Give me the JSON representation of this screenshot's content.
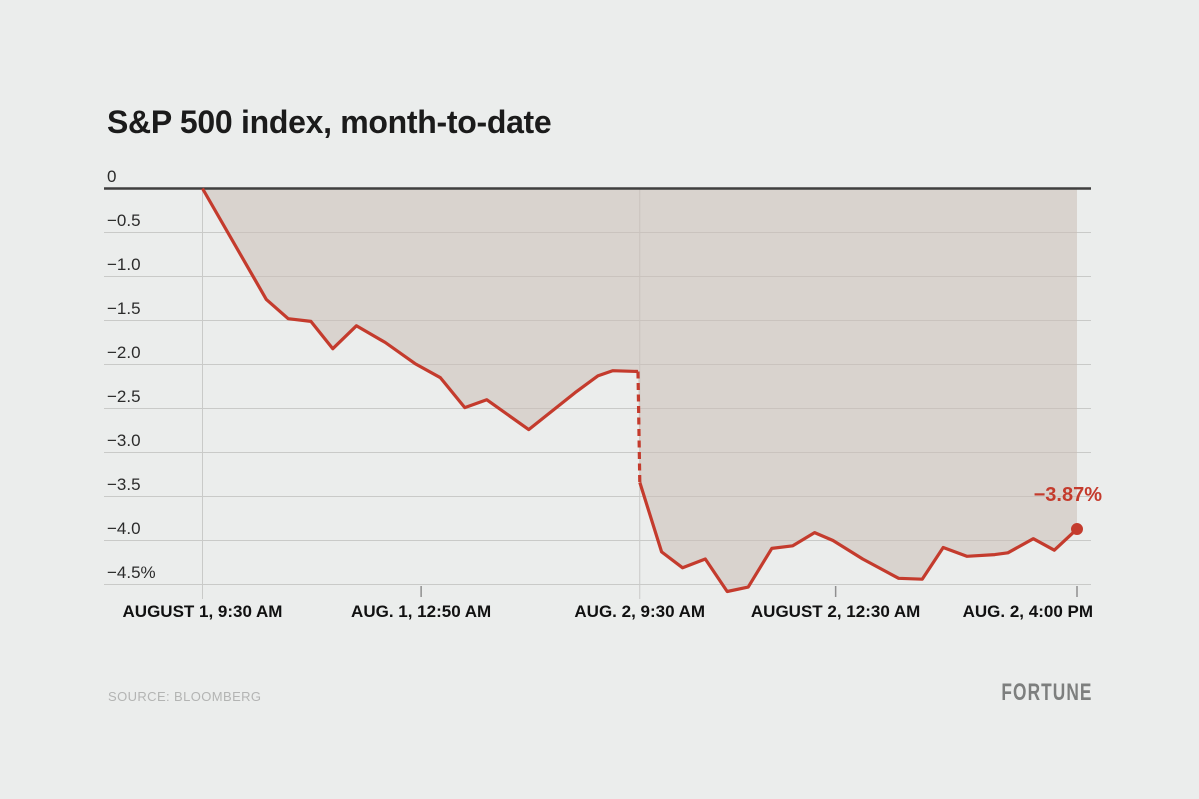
{
  "page": {
    "background": "#ebedec"
  },
  "chart_data": {
    "type": "area",
    "title": "S&P 500 index, month-to-date",
    "unit": "percent change",
    "ylim": [
      -4.75,
      0
    ],
    "grid": true,
    "y_ticks": [
      "0",
      "−0.5",
      "−1.0",
      "−1.5",
      "−2.0",
      "−2.5",
      "−3.0",
      "−3.5",
      "−4.0",
      "−4.5%"
    ],
    "y_tick_values": [
      0,
      -0.5,
      -1.0,
      -1.5,
      -2.0,
      -2.5,
      -3.0,
      -3.5,
      -4.0,
      -4.5
    ],
    "x_ticks": [
      {
        "label": "AUGUST 1, 9:30 AM",
        "f": 0.0,
        "grid": true,
        "align": "center"
      },
      {
        "label": "AUG. 1, 12:50 AM",
        "f": 0.25,
        "grid": false,
        "align": "center"
      },
      {
        "label": "AUG. 2, 9:30 AM",
        "f": 0.5,
        "grid": true,
        "align": "center"
      },
      {
        "label": "AUGUST 2, 12:30 AM",
        "f": 0.724,
        "grid": false,
        "align": "center"
      },
      {
        "label": "AUG. 2, 4:00 PM",
        "f": 1.0,
        "grid": false,
        "align": "right"
      }
    ],
    "series": [
      {
        "name": "S&P 500 % change, month-to-date",
        "points": [
          [
            0.0,
            0.0
          ],
          [
            0.073,
            -1.26
          ],
          [
            0.098,
            -1.48
          ],
          [
            0.124,
            -1.51
          ],
          [
            0.149,
            -1.82
          ],
          [
            0.176,
            -1.56
          ],
          [
            0.209,
            -1.75
          ],
          [
            0.243,
            -1.99
          ],
          [
            0.272,
            -2.15
          ],
          [
            0.3,
            -2.49
          ],
          [
            0.325,
            -2.4
          ],
          [
            0.373,
            -2.74
          ],
          [
            0.426,
            -2.32
          ],
          [
            0.452,
            -2.13
          ],
          [
            0.469,
            -2.07
          ],
          [
            0.498,
            -2.08
          ],
          [
            0.5,
            -3.34
          ],
          [
            0.525,
            -4.13
          ],
          [
            0.549,
            -4.31
          ],
          [
            0.575,
            -4.21
          ],
          [
            0.6,
            -4.58
          ],
          [
            0.624,
            -4.53
          ],
          [
            0.651,
            -4.09
          ],
          [
            0.675,
            -4.06
          ],
          [
            0.7,
            -3.91
          ],
          [
            0.721,
            -4.0
          ],
          [
            0.755,
            -4.21
          ],
          [
            0.796,
            -4.43
          ],
          [
            0.823,
            -4.44
          ],
          [
            0.847,
            -4.08
          ],
          [
            0.874,
            -4.18
          ],
          [
            0.906,
            -4.16
          ],
          [
            0.921,
            -4.14
          ],
          [
            0.95,
            -3.98
          ],
          [
            0.974,
            -4.11
          ],
          [
            1.0,
            -3.87
          ]
        ]
      }
    ],
    "dash_segment": [
      15,
      16
    ],
    "end_label": "−3.87%",
    "end_value": -3.87,
    "legend": "none",
    "colors": {
      "line": "#c43b2d",
      "area_fill": "rgba(203,189,182,0.55)",
      "grid_line": "#c9cac8",
      "zero_line": "#3f3f3f",
      "minor_tick": "#8f8f8f",
      "end_label": "#c43b2d"
    }
  },
  "footer": {
    "source": "SOURCE: BLOOMBERG",
    "brand": "FORTUNE"
  }
}
